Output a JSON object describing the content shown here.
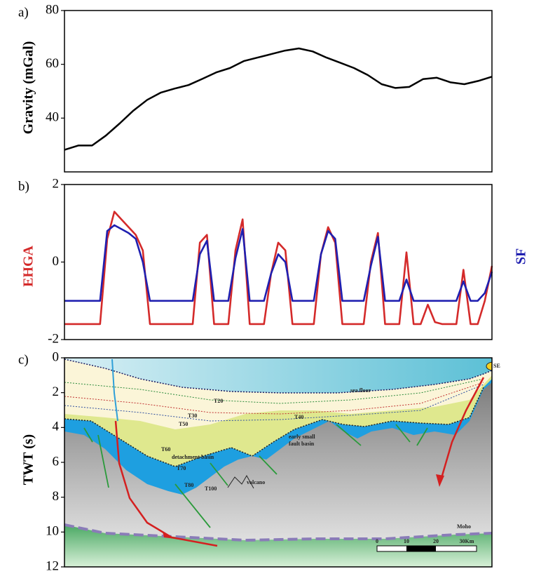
{
  "chart_data": [
    {
      "type": "line",
      "label": "a)",
      "ylabel": "Gravity (mGal)",
      "color": "#000000",
      "values": [
        28.2,
        29.8,
        29.8,
        33.5,
        38,
        42.8,
        46.8,
        49.5,
        51,
        52.3,
        54.6,
        57,
        58.6,
        61.2,
        62.5,
        63.8,
        65.1,
        65.9,
        64.8,
        62.5,
        60.6,
        58.6,
        56,
        52.6,
        51.2,
        51.6,
        54.5,
        55,
        53.3,
        52.6,
        53.8,
        55.4
      ],
      "ylim": [
        20,
        80
      ],
      "yticks": [
        40,
        60,
        80
      ]
    },
    {
      "type": "line",
      "label": "b)",
      "series": [
        {
          "name": "EHGA",
          "color": "#d42a2a",
          "values": [
            -1.6,
            -1.6,
            -1.6,
            -1.6,
            -1.6,
            -1.6,
            0.6,
            1.3,
            1.1,
            0.9,
            0.7,
            0.3,
            -1.6,
            -1.6,
            -1.6,
            -1.6,
            -1.6,
            -1.6,
            -1.6,
            0.5,
            0.7,
            -1.6,
            -1.6,
            -1.6,
            0.3,
            1.1,
            -1.6,
            -1.6,
            -1.6,
            -0.3,
            0.5,
            0.3,
            -1.6,
            -1.6,
            -1.6,
            -1.6,
            0.2,
            0.9,
            0.5,
            -1.6,
            -1.6,
            -1.6,
            -1.6,
            0,
            0.75,
            -1.6,
            -1.6,
            -1.6,
            0.25,
            -1.6,
            -1.6,
            -1.1,
            -1.55,
            -1.6,
            -1.6,
            -1.6,
            -0.2,
            -1.6,
            -1.6,
            -1.0,
            -0.1
          ]
        },
        {
          "name": "SF",
          "color": "#1f1fb0",
          "values": [
            -1,
            -1,
            -1,
            -1,
            -1,
            -1,
            0.8,
            0.95,
            0.85,
            0.75,
            0.6,
            0,
            -1,
            -1,
            -1,
            -1,
            -1,
            -1,
            -1,
            0.2,
            0.55,
            -1,
            -1,
            -1,
            0.1,
            0.85,
            -1,
            -1,
            -1,
            -0.3,
            0.2,
            0,
            -1,
            -1,
            -1,
            -1,
            0.2,
            0.8,
            0.6,
            -1,
            -1,
            -1,
            -1,
            -0.1,
            0.65,
            -1,
            -1,
            -1,
            -0.45,
            -1,
            -1,
            -1,
            -1,
            -1,
            -1,
            -1,
            -0.5,
            -1,
            -1,
            -0.8,
            -0.25
          ]
        }
      ],
      "ylim": [
        -2,
        2
      ],
      "yticks": [
        -2,
        0,
        2
      ]
    },
    {
      "type": "cross-section",
      "label": "c)",
      "ylabel": "TWT (s)",
      "ylim": [
        0,
        12
      ],
      "yticks": [
        0,
        2,
        4,
        6,
        8,
        10,
        12
      ],
      "y_inverted": true,
      "annotations": [
        "sea floor",
        "T20",
        "T30",
        "T40",
        "T50",
        "T60",
        "detachment basin",
        "T70",
        "T80",
        "T100",
        "volcano",
        "early small",
        "fault basin",
        "Moho",
        "SE"
      ],
      "scale_labels": [
        "0",
        "10",
        "20",
        "30Km"
      ]
    }
  ]
}
